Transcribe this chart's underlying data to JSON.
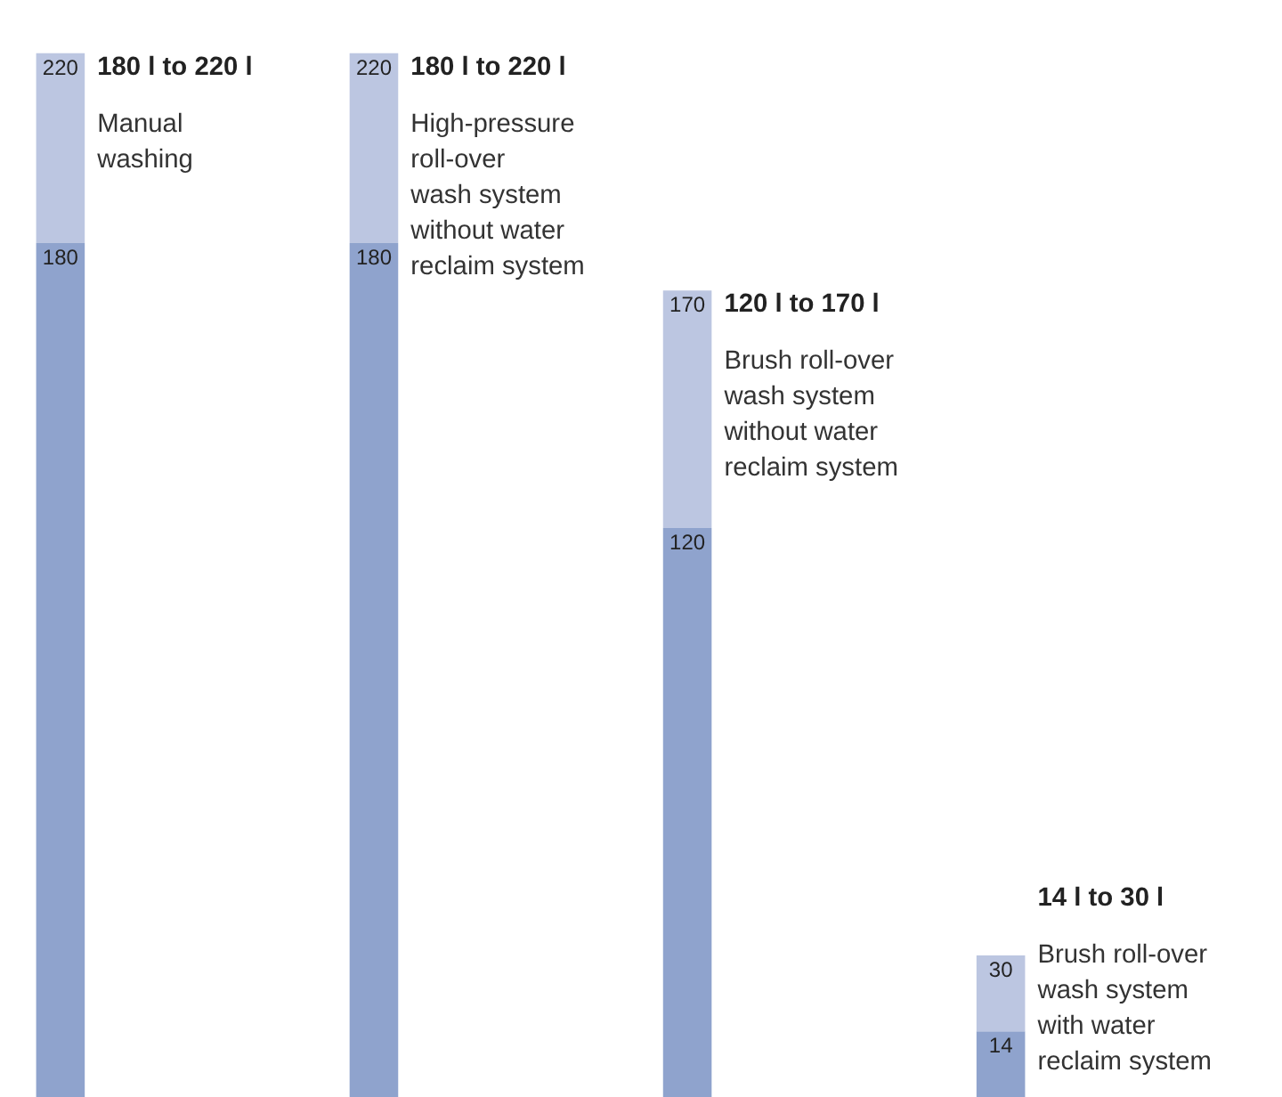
{
  "chart_data": {
    "type": "bar",
    "stacked": true,
    "categories": [
      null,
      null,
      null,
      null
    ],
    "series": [
      {
        "color": "#8fa3cd",
        "values": [
          180,
          180,
          120,
          14
        ],
        "value_labels": [
          "180",
          "180",
          "120",
          "14"
        ]
      },
      {
        "color": "#bcc6e1",
        "values": [
          40,
          40,
          50,
          16
        ]
      }
    ],
    "totals": [
      "220",
      "220",
      "170",
      "30"
    ],
    "annotations": [
      "180 l to 220 l",
      "Manual\nwashing",
      "180 l to 220 l",
      "High-pressure\nroll-over\nwash system\nwithout water\nreclaim system",
      "120 l to 170 l",
      "Brush roll-over\nwash system\nwithout water\nreclaim system",
      "14 l to 30 l",
      "Brush roll-over\nwash system\nwith water\nreclaim system"
    ],
    "grid": false
  }
}
